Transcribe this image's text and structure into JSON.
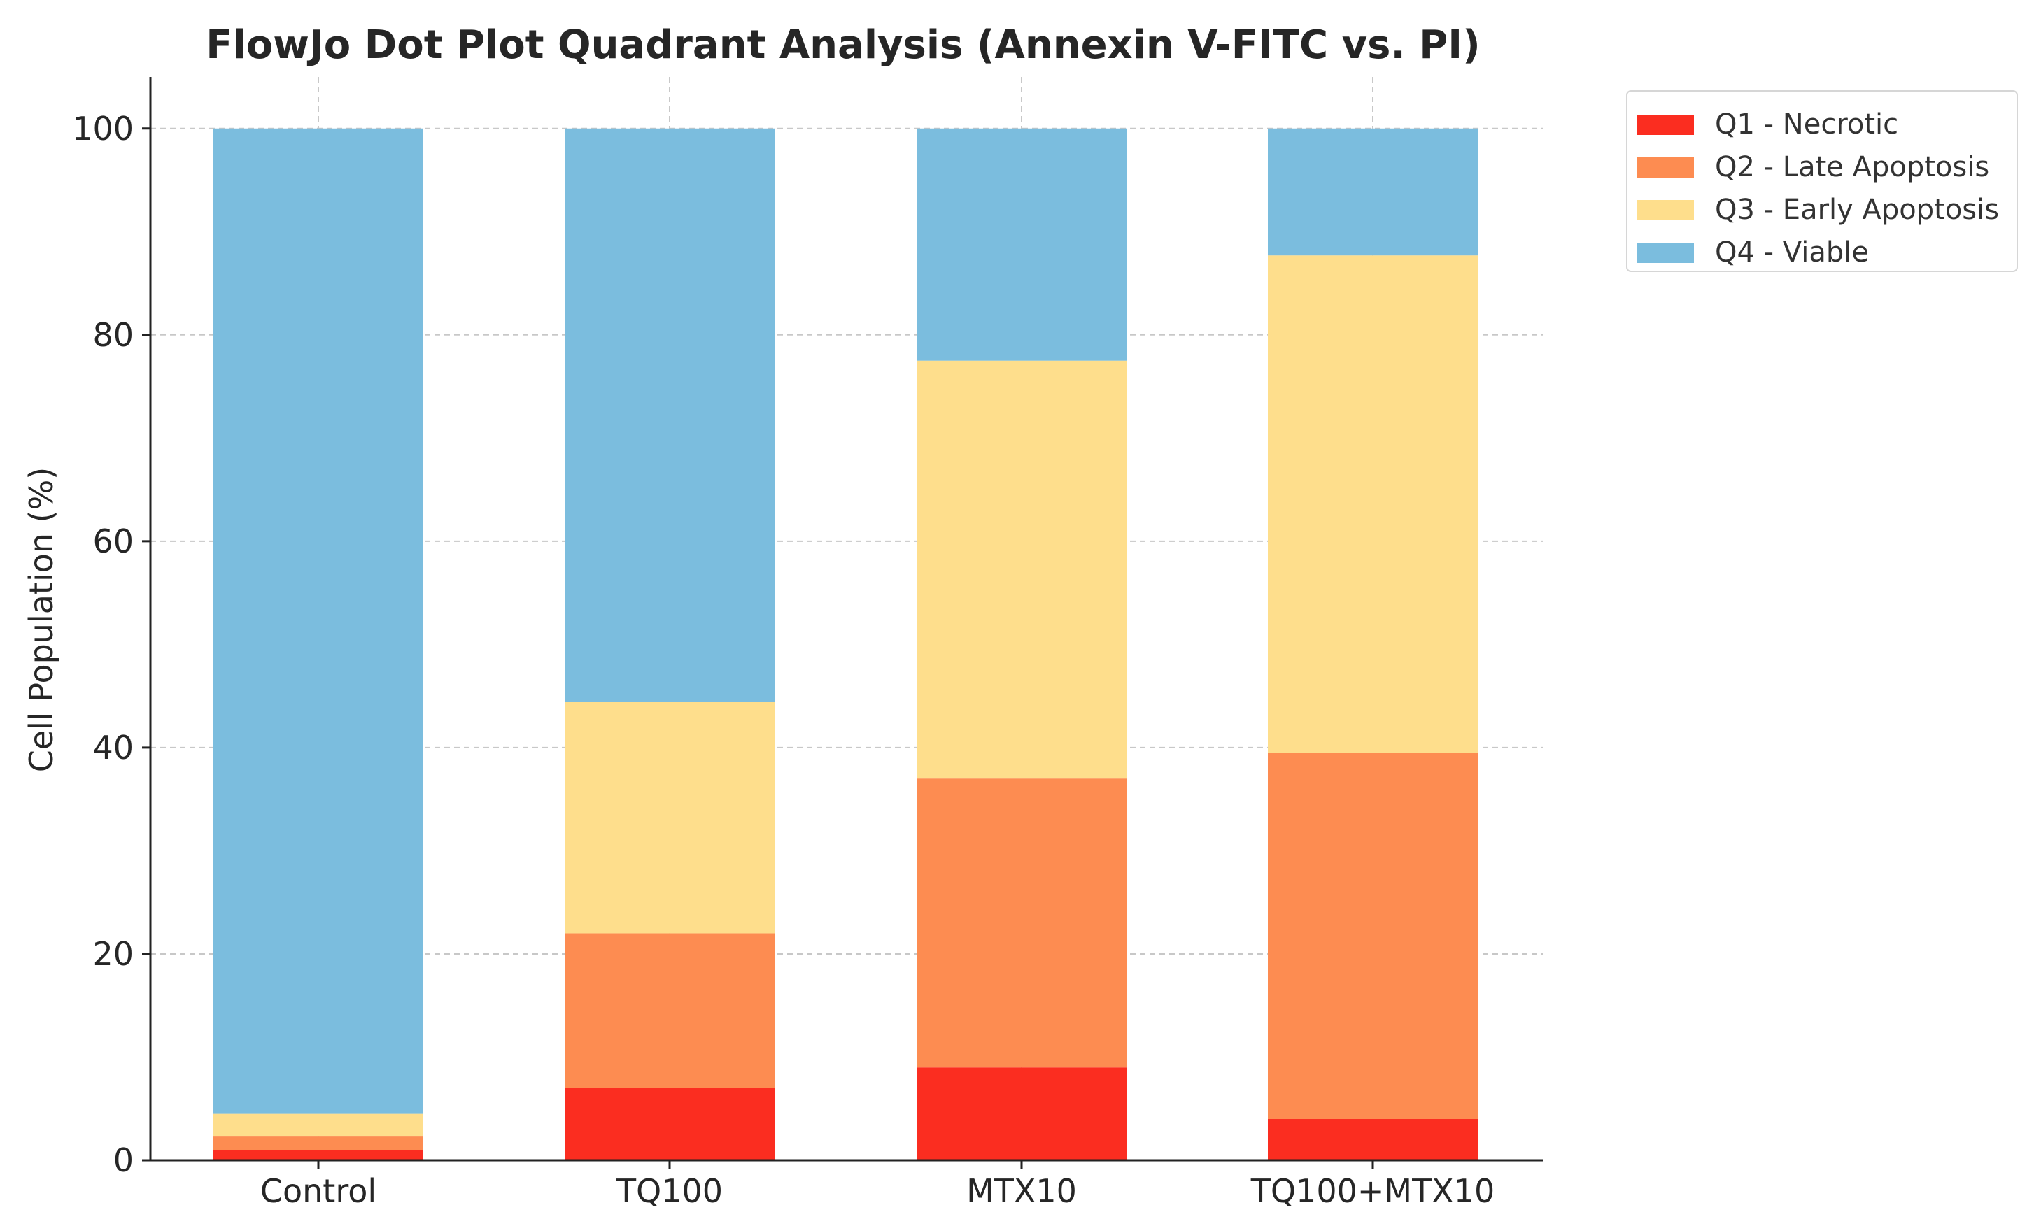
{
  "chart_data": {
    "type": "bar",
    "stacked": true,
    "title": "FlowJo Dot Plot Quadrant Analysis (Annexin V-FITC vs. PI)",
    "xlabel": "",
    "ylabel": "Cell Population (%)",
    "ylim": [
      0,
      105
    ],
    "yticks": [
      0,
      20,
      40,
      60,
      80,
      100
    ],
    "grid": true,
    "legend_position": "top-right, outside plot",
    "categories": [
      "Control",
      "TQ100",
      "MTX10",
      "TQ100+MTX10"
    ],
    "series": [
      {
        "name": "Q1 - Necrotic",
        "color": "#fb2d20",
        "values": [
          1.0,
          7.0,
          9.0,
          4.0
        ]
      },
      {
        "name": "Q2 - Late Apoptosis",
        "color": "#fd8c51",
        "values": [
          1.3,
          15.0,
          28.0,
          35.5
        ]
      },
      {
        "name": "Q3 - Early Apoptosis",
        "color": "#fede8c",
        "values": [
          2.2,
          22.4,
          40.5,
          48.2
        ]
      },
      {
        "name": "Q4 - Viable",
        "color": "#7bbdde",
        "values": [
          95.5,
          55.6,
          22.5,
          12.3
        ]
      }
    ]
  }
}
